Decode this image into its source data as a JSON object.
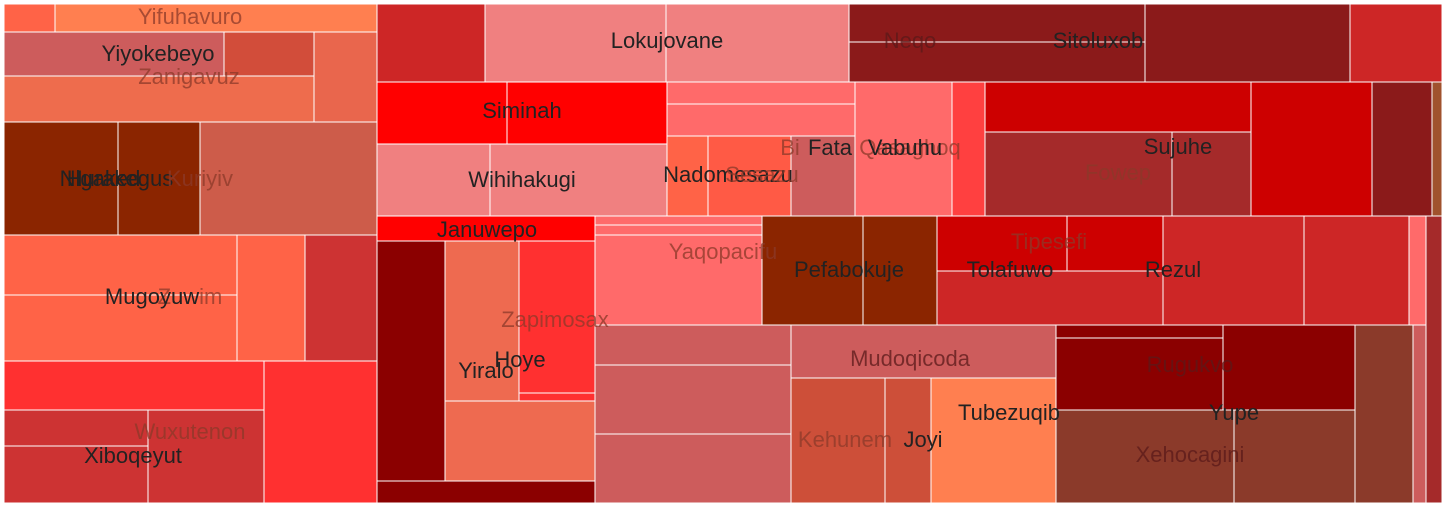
{
  "chart_data": {
    "type": "treemap",
    "labels": [
      {
        "text": "Yifuhavuro",
        "color": "#8B3A2A",
        "faded": true
      },
      {
        "text": "Yiyokebeyo",
        "color": "#222222",
        "faded": false
      },
      {
        "text": "Zanigavuz",
        "color": "#8B3A2A",
        "faded": true
      },
      {
        "text": "Nlgaked",
        "color": "#222222",
        "faded": false
      },
      {
        "text": "Hurakegus",
        "color": "#222222",
        "faded": false
      },
      {
        "text": "Kuriyiv",
        "color": "#8B3A2A",
        "faded": true
      },
      {
        "text": "Zuwim",
        "color": "#8B3A2A",
        "faded": true
      },
      {
        "text": "Mugoyuw",
        "color": "#222222",
        "faded": false
      },
      {
        "text": "Wuxutenon",
        "color": "#8B3A2A",
        "faded": true
      },
      {
        "text": "Xiboqeyut",
        "color": "#222222",
        "faded": false
      },
      {
        "text": "Lokujovane",
        "color": "#222222",
        "faded": false
      },
      {
        "text": "Siminah",
        "color": "#222222",
        "faded": false
      },
      {
        "text": "Wihihakugi",
        "color": "#222222",
        "faded": false
      },
      {
        "text": "Nadomesazu",
        "color": "#222222",
        "faded": false
      },
      {
        "text": "Sesazu",
        "color": "#8B3A2A",
        "faded": true
      },
      {
        "text": "Bi",
        "color": "#8B3A2A",
        "faded": true
      },
      {
        "text": "Fata",
        "color": "#222222",
        "faded": false
      },
      {
        "text": "Qasaghoq",
        "color": "#8B3A2A",
        "faded": true
      },
      {
        "text": "Vabuhu",
        "color": "#222222",
        "faded": false
      },
      {
        "text": "Neqo",
        "color": "#5a1a1a",
        "faded": true
      },
      {
        "text": "Sitoluxob",
        "color": "#222222",
        "faded": false
      },
      {
        "text": "Sujuhe",
        "color": "#222222",
        "faded": false
      },
      {
        "text": "Fowep",
        "color": "#8B3A2A",
        "faded": true
      },
      {
        "text": "Januwepo",
        "color": "#222222",
        "faded": false
      },
      {
        "text": "Yaqopacifu",
        "color": "#8B3A2A",
        "faded": true
      },
      {
        "text": "Pefabokuje",
        "color": "#222222",
        "faded": false
      },
      {
        "text": "Tipesefi",
        "color": "#8B3A2A",
        "faded": true
      },
      {
        "text": "Tolafuwo",
        "color": "#222222",
        "faded": false
      },
      {
        "text": "Rezul",
        "color": "#222222",
        "faded": false
      },
      {
        "text": "Zapimosax",
        "color": "#8B3A2A",
        "faded": true
      },
      {
        "text": "Yiralo",
        "color": "#222222",
        "faded": false
      },
      {
        "text": "Hoye",
        "color": "#222222",
        "faded": false
      },
      {
        "text": "Mudoqicoda",
        "color": "#5a1a1a",
        "faded": true
      },
      {
        "text": "Rugukvo",
        "color": "#5a1a1a",
        "faded": true
      },
      {
        "text": "Tubezuqib",
        "color": "#222222",
        "faded": false
      },
      {
        "text": "Yupe",
        "color": "#222222",
        "faded": false
      },
      {
        "text": "Kehunem",
        "color": "#8B3A2A",
        "faded": true
      },
      {
        "text": "Joyi",
        "color": "#222222",
        "faded": false
      },
      {
        "text": "Xehocagini",
        "color": "#5a1a1a",
        "faded": true
      }
    ]
  }
}
